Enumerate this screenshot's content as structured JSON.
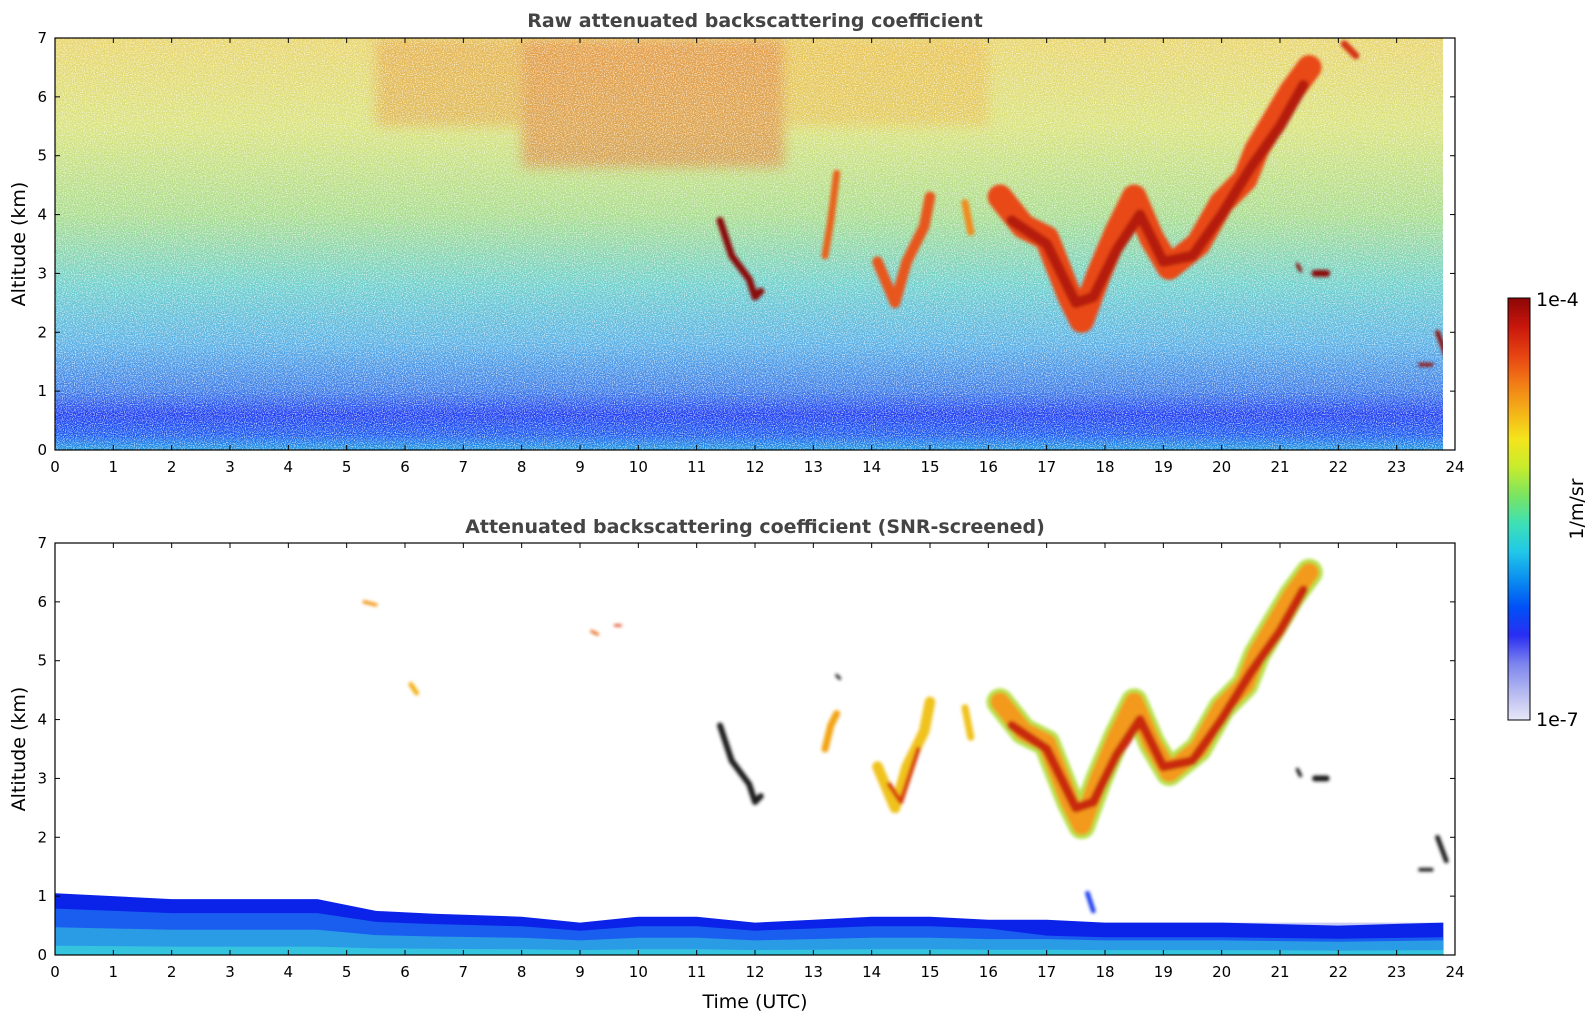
{
  "chart_data": [
    {
      "type": "heatmap",
      "title": "Raw attenuated backscattering coefficient",
      "xlabel": "",
      "ylabel": "Altitude (km)",
      "xlim": [
        0,
        24
      ],
      "ylim": [
        0,
        7
      ],
      "xticks": [
        "0",
        "1",
        "2",
        "3",
        "4",
        "5",
        "6",
        "7",
        "8",
        "9",
        "10",
        "11",
        "12",
        "13",
        "14",
        "15",
        "16",
        "17",
        "18",
        "19",
        "20",
        "21",
        "22",
        "23",
        "24"
      ],
      "yticks": [
        "0",
        "1",
        "2",
        "3",
        "4",
        "5",
        "6",
        "7"
      ],
      "background_gradient": [
        {
          "alt": 0.0,
          "color": "#1f9be0"
        },
        {
          "alt": 0.25,
          "color": "#1a5af0"
        },
        {
          "alt": 0.6,
          "color": "#1e3ef2"
        },
        {
          "alt": 1.0,
          "color": "#3c7be8"
        },
        {
          "alt": 1.8,
          "color": "#58b0e6"
        },
        {
          "alt": 2.8,
          "color": "#6ccfcc"
        },
        {
          "alt": 4.0,
          "color": "#a8dc8c"
        },
        {
          "alt": 5.5,
          "color": "#d8e27a"
        },
        {
          "alt": 7.0,
          "color": "#e8d46a"
        }
      ],
      "aerosol_haze": [
        {
          "t0": 8.0,
          "t1": 12.5,
          "alt0": 4.8,
          "alt1": 7.0,
          "color": "#e0702a"
        },
        {
          "t0": 5.5,
          "t1": 8.0,
          "alt0": 5.5,
          "alt1": 7.0,
          "color": "#e39a3a"
        },
        {
          "t0": 12.5,
          "t1": 16.0,
          "alt0": 5.5,
          "alt1": 7.0,
          "color": "#e9b645"
        }
      ],
      "cloud_features": [
        {
          "points": [
            [
              11.4,
              3.9
            ],
            [
              11.6,
              3.3
            ],
            [
              11.9,
              2.9
            ],
            [
              12.0,
              2.6
            ],
            [
              12.1,
              2.7
            ]
          ],
          "width": 0.12,
          "color": "#8a0f08"
        },
        {
          "points": [
            [
              13.2,
              3.3
            ],
            [
              13.3,
              3.9
            ],
            [
              13.4,
              4.7
            ]
          ],
          "width": 0.12,
          "color": "#e8641c"
        },
        {
          "points": [
            [
              14.1,
              3.2
            ],
            [
              14.4,
              2.5
            ],
            [
              14.6,
              3.2
            ],
            [
              14.9,
              3.8
            ],
            [
              15.0,
              4.3
            ]
          ],
          "width": 0.18,
          "color": "#e7561a"
        },
        {
          "points": [
            [
              15.6,
              4.2
            ],
            [
              15.7,
              3.7
            ]
          ],
          "width": 0.12,
          "color": "#f08a1e"
        },
        {
          "points": [
            [
              16.2,
              4.3
            ],
            [
              16.6,
              3.8
            ],
            [
              17.0,
              3.6
            ],
            [
              17.4,
              2.6
            ],
            [
              17.6,
              2.2
            ],
            [
              17.9,
              3.0
            ],
            [
              18.2,
              3.7
            ],
            [
              18.5,
              4.3
            ],
            [
              18.8,
              3.6
            ],
            [
              19.1,
              3.1
            ],
            [
              19.6,
              3.5
            ],
            [
              20.0,
              4.2
            ],
            [
              20.4,
              4.6
            ],
            [
              20.6,
              5.1
            ],
            [
              20.9,
              5.6
            ],
            [
              21.2,
              6.1
            ],
            [
              21.5,
              6.5
            ]
          ],
          "width": 0.42,
          "color": "#e94a15"
        },
        {
          "points": [
            [
              16.4,
              3.9
            ],
            [
              17.0,
              3.5
            ],
            [
              17.5,
              2.5
            ],
            [
              17.8,
              2.6
            ],
            [
              18.2,
              3.4
            ],
            [
              18.6,
              4.0
            ],
            [
              19.0,
              3.2
            ],
            [
              19.5,
              3.3
            ],
            [
              20.0,
              4.0
            ],
            [
              20.5,
              4.8
            ],
            [
              21.0,
              5.5
            ],
            [
              21.4,
              6.2
            ]
          ],
          "width": 0.18,
          "color": "#b51e0a"
        },
        {
          "points": [
            [
              21.6,
              3.0
            ],
            [
              21.8,
              3.0
            ]
          ],
          "width": 0.12,
          "color": "#8a0f08"
        },
        {
          "points": [
            [
              21.3,
              3.15
            ],
            [
              21.35,
              3.05
            ]
          ],
          "width": 0.06,
          "color": "#8a0f08"
        },
        {
          "points": [
            [
              22.1,
              6.9
            ],
            [
              22.3,
              6.7
            ]
          ],
          "width": 0.12,
          "color": "#d53512"
        },
        {
          "points": [
            [
              23.7,
              2.0
            ],
            [
              23.85,
              1.6
            ]
          ],
          "width": 0.08,
          "color": "#8a0f08"
        },
        {
          "points": [
            [
              23.4,
              1.45
            ],
            [
              23.6,
              1.45
            ]
          ],
          "width": 0.06,
          "color": "#8a0f08"
        }
      ]
    },
    {
      "type": "heatmap",
      "title": "Attenuated backscattering coefficient (SNR-screened)",
      "xlabel": "Time (UTC)",
      "ylabel": "Altitude (km)",
      "xlim": [
        0,
        24
      ],
      "ylim": [
        0,
        7
      ],
      "xticks": [
        "0",
        "1",
        "2",
        "3",
        "4",
        "5",
        "6",
        "7",
        "8",
        "9",
        "10",
        "11",
        "12",
        "13",
        "14",
        "15",
        "16",
        "17",
        "18",
        "19",
        "20",
        "21",
        "22",
        "23",
        "24"
      ],
      "yticks": [
        "0",
        "1",
        "2",
        "3",
        "4",
        "5",
        "6",
        "7"
      ],
      "boundary_layer_top": [
        {
          "t": 0.0,
          "alt": 1.05
        },
        {
          "t": 2.0,
          "alt": 0.95
        },
        {
          "t": 3.0,
          "alt": 0.95
        },
        {
          "t": 4.5,
          "alt": 0.95
        },
        {
          "t": 5.5,
          "alt": 0.75
        },
        {
          "t": 6.5,
          "alt": 0.7
        },
        {
          "t": 8.0,
          "alt": 0.65
        },
        {
          "t": 9.0,
          "alt": 0.55
        },
        {
          "t": 10.0,
          "alt": 0.65
        },
        {
          "t": 11.0,
          "alt": 0.65
        },
        {
          "t": 12.0,
          "alt": 0.55
        },
        {
          "t": 13.0,
          "alt": 0.6
        },
        {
          "t": 14.0,
          "alt": 0.65
        },
        {
          "t": 15.0,
          "alt": 0.65
        },
        {
          "t": 16.0,
          "alt": 0.6
        },
        {
          "t": 17.0,
          "alt": 0.6
        },
        {
          "t": 18.0,
          "alt": 0.55
        },
        {
          "t": 20.0,
          "alt": 0.55
        },
        {
          "t": 22.0,
          "alt": 0.5
        },
        {
          "t": 23.8,
          "alt": 0.55
        }
      ],
      "boundary_layer_colors": [
        "#0b23e8",
        "#1a5ef0",
        "#2a9ce6",
        "#35c4de"
      ],
      "screened_haze_color": "#c8ccf4",
      "cloud_features": [
        {
          "points": [
            [
              11.4,
              3.9
            ],
            [
              11.6,
              3.3
            ],
            [
              11.9,
              2.9
            ],
            [
              12.0,
              2.6
            ],
            [
              12.1,
              2.7
            ]
          ],
          "width": 0.1,
          "color": "#1a1a1a"
        },
        {
          "points": [
            [
              13.2,
              3.5
            ],
            [
              13.3,
              3.9
            ],
            [
              13.4,
              4.1
            ]
          ],
          "width": 0.12,
          "color": "#f3a418"
        },
        {
          "points": [
            [
              14.1,
              3.2
            ],
            [
              14.4,
              2.5
            ],
            [
              14.6,
              3.2
            ],
            [
              14.9,
              3.8
            ],
            [
              15.0,
              4.3
            ]
          ],
          "width": 0.18,
          "color": "#f0c21c"
        },
        {
          "points": [
            [
              14.3,
              2.9
            ],
            [
              14.5,
              2.6
            ],
            [
              14.8,
              3.5
            ]
          ],
          "width": 0.08,
          "color": "#d8400f"
        },
        {
          "points": [
            [
              15.6,
              4.2
            ],
            [
              15.7,
              3.7
            ]
          ],
          "width": 0.12,
          "color": "#f0c21c"
        },
        {
          "points": [
            [
              16.2,
              4.3
            ],
            [
              16.6,
              3.8
            ],
            [
              17.0,
              3.6
            ],
            [
              17.4,
              2.6
            ],
            [
              17.6,
              2.2
            ],
            [
              17.9,
              3.0
            ],
            [
              18.2,
              3.7
            ],
            [
              18.5,
              4.3
            ],
            [
              18.8,
              3.6
            ],
            [
              19.1,
              3.1
            ],
            [
              19.6,
              3.5
            ],
            [
              20.0,
              4.2
            ],
            [
              20.4,
              4.6
            ],
            [
              20.6,
              5.1
            ],
            [
              20.9,
              5.6
            ],
            [
              21.2,
              6.1
            ],
            [
              21.5,
              6.5
            ]
          ],
          "width": 0.46,
          "color": "#b6e04a"
        },
        {
          "points": [
            [
              16.2,
              4.3
            ],
            [
              16.6,
              3.8
            ],
            [
              17.0,
              3.6
            ],
            [
              17.4,
              2.6
            ],
            [
              17.6,
              2.2
            ],
            [
              17.9,
              3.0
            ],
            [
              18.2,
              3.7
            ],
            [
              18.5,
              4.3
            ],
            [
              18.8,
              3.6
            ],
            [
              19.1,
              3.1
            ],
            [
              19.6,
              3.5
            ],
            [
              20.0,
              4.2
            ],
            [
              20.4,
              4.6
            ],
            [
              20.6,
              5.1
            ],
            [
              20.9,
              5.6
            ],
            [
              21.2,
              6.1
            ],
            [
              21.5,
              6.5
            ]
          ],
          "width": 0.32,
          "color": "#f39a1c"
        },
        {
          "points": [
            [
              16.4,
              3.9
            ],
            [
              17.0,
              3.5
            ],
            [
              17.5,
              2.5
            ],
            [
              17.8,
              2.6
            ],
            [
              18.2,
              3.4
            ],
            [
              18.6,
              4.0
            ],
            [
              19.0,
              3.2
            ],
            [
              19.5,
              3.3
            ],
            [
              20.0,
              4.0
            ],
            [
              20.5,
              4.8
            ],
            [
              21.0,
              5.5
            ],
            [
              21.4,
              6.2
            ]
          ],
          "width": 0.16,
          "color": "#c92a0c"
        },
        {
          "points": [
            [
              21.6,
              3.0
            ],
            [
              21.8,
              3.0
            ]
          ],
          "width": 0.1,
          "color": "#1a1a1a"
        },
        {
          "points": [
            [
              21.3,
              3.15
            ],
            [
              21.35,
              3.05
            ]
          ],
          "width": 0.06,
          "color": "#1a1a1a"
        },
        {
          "points": [
            [
              23.7,
              2.0
            ],
            [
              23.85,
              1.6
            ]
          ],
          "width": 0.08,
          "color": "#1a1a1a"
        },
        {
          "points": [
            [
              23.4,
              1.45
            ],
            [
              23.6,
              1.45
            ]
          ],
          "width": 0.06,
          "color": "#1a1a1a"
        },
        {
          "points": [
            [
              5.3,
              6.0
            ],
            [
              5.5,
              5.95
            ]
          ],
          "width": 0.06,
          "color": "#f39a1c"
        },
        {
          "points": [
            [
              6.1,
              4.6
            ],
            [
              6.2,
              4.45
            ]
          ],
          "width": 0.08,
          "color": "#f3b018"
        },
        {
          "points": [
            [
              9.2,
              5.5
            ],
            [
              9.3,
              5.45
            ]
          ],
          "width": 0.05,
          "color": "#e86a1c"
        },
        {
          "points": [
            [
              9.6,
              5.6
            ],
            [
              9.7,
              5.6
            ]
          ],
          "width": 0.04,
          "color": "#e0401a"
        },
        {
          "points": [
            [
              13.4,
              4.75
            ],
            [
              13.45,
              4.7
            ]
          ],
          "width": 0.05,
          "color": "#1a1a1a"
        },
        {
          "points": [
            [
              17.7,
              1.05
            ],
            [
              17.8,
              0.75
            ]
          ],
          "width": 0.08,
          "color": "#1f3ef0"
        }
      ]
    }
  ],
  "colorbar": {
    "max_label": "1e-4",
    "min_label": "1e-7",
    "unit_label": "1/m/sr",
    "colors": [
      "#e8e8f8",
      "#b4b8f0",
      "#7c84ee",
      "#2a2ef2",
      "#0050f6",
      "#0b8ef0",
      "#22c8e8",
      "#3ee0b4",
      "#7ce460",
      "#c8ec2c",
      "#f4e41c",
      "#f4b018",
      "#f27a16",
      "#e64212",
      "#c8160c",
      "#8c0606"
    ]
  }
}
